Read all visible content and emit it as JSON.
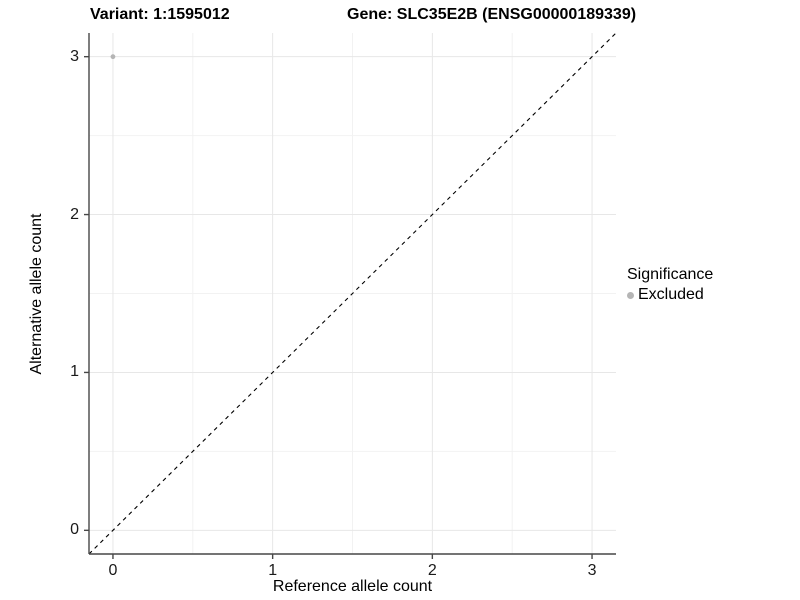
{
  "chart_data": {
    "type": "scatter",
    "title_left": "Variant: 1:1595012",
    "title_right": "Gene: SLC35E2B (ENSG00000189339)",
    "title": "Variant: 1:1595012   Gene: SLC35E2B (ENSG00000189339)",
    "xlabel": "Reference allele count",
    "ylabel": "Alternative allele count",
    "xlim": [
      -0.15,
      3.15
    ],
    "ylim": [
      -0.15,
      3.15
    ],
    "x_ticks": [
      0,
      1,
      2,
      3
    ],
    "y_ticks": [
      0,
      1,
      2,
      3
    ],
    "x_minor_ticks": [
      0.5,
      1.5,
      2.5
    ],
    "y_minor_ticks": [
      0.5,
      1.5,
      2.5
    ],
    "grid": true,
    "points": [
      {
        "x": 0,
        "y": 3,
        "series": "Excluded"
      }
    ],
    "reference_line": {
      "kind": "diagonal",
      "equation": "y = x",
      "style": "dashed"
    },
    "legend": {
      "title": "Significance",
      "position": "right",
      "items": [
        {
          "label": "Excluded",
          "color": "#b5b5b5"
        }
      ]
    },
    "colors": {
      "point": "#b5b5b5",
      "grid_major": "#e7e7e7",
      "grid_minor": "#f2f2f2",
      "axis": "#474747",
      "diagonal": "#000000",
      "background": "#ffffff",
      "text": "#000000"
    }
  }
}
